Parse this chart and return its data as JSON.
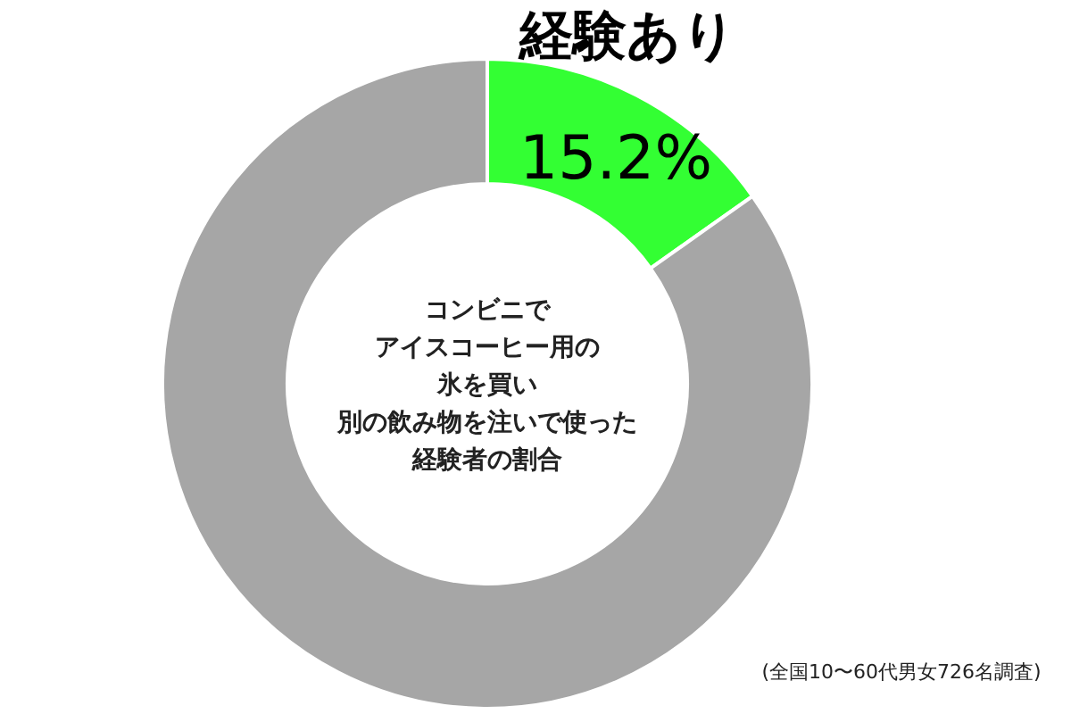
{
  "chart_data": {
    "type": "donut",
    "title": "コンビニでアイスコーヒー用の氷を買い別の飲み物を注いで使った経験者の割合",
    "categories": [
      "経験あり",
      null
    ],
    "values": [
      15.2,
      84.8
    ],
    "colors": [
      "#33ff33",
      "#a6a6a6"
    ],
    "value_labels": [
      "15.2%",
      null
    ],
    "annotations": [
      "(全国10〜60代男女726名調査)"
    ]
  }
}
